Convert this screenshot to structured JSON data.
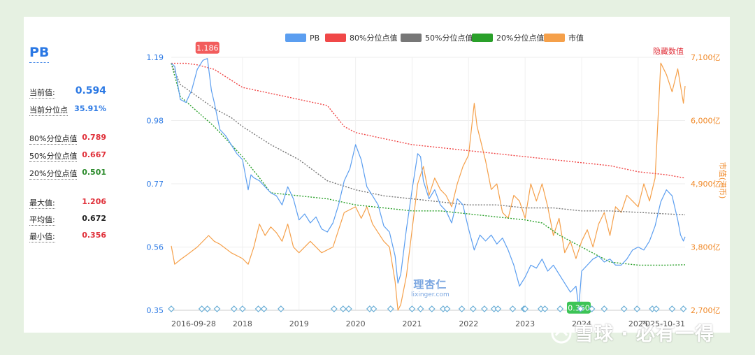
{
  "sidebar": {
    "title": "PB",
    "current_label": "当前值:",
    "current_value": "0.594",
    "percentile_label": "当前分位点",
    "percentile_value": "35.91%",
    "p80_label": "80%分位点值",
    "p80_value": "0.789",
    "p50_label": "50%分位点值",
    "p50_value": "0.667",
    "p20_label": "20%分位点值",
    "p20_value": "0.501",
    "max_label": "最大值:",
    "max_value": "1.206",
    "avg_label": "平均值:",
    "avg_value": "0.672",
    "min_label": "最小值:",
    "min_value": "0.356"
  },
  "right_axis_note": "隐藏数值",
  "watermark": {
    "lixinger_cn": "理杏仁",
    "lixinger_url": "lixinger.com",
    "snowball": "雪球 · 必有一得"
  },
  "colors": {
    "pb": "#5b9ef0",
    "p80": "#f04848",
    "p50": "#777777",
    "p20": "#2aa02a",
    "mv": "#f5a04a",
    "diamond": "#6aaed6"
  },
  "chart_data": {
    "type": "line",
    "title": "",
    "legend": [
      "PB",
      "80%分位点值",
      "50%分位点值",
      "20%分位点值",
      "市值"
    ],
    "legend_position": "top",
    "x_ticks": [
      "2016-09-28",
      "2018",
      "2019",
      "2020",
      "2021",
      "2022",
      "2023",
      "2024",
      "2025",
      "2025-10-31"
    ],
    "y_left_ticks": [
      "1.19",
      "0.98",
      "0.77",
      "0.56",
      "0.35"
    ],
    "y_left_range": [
      0.35,
      1.19
    ],
    "y_right_ticks": [
      "7,100亿",
      "6,000亿",
      "4,900亿",
      "3,800亿",
      "2,700亿"
    ],
    "y_right_range": [
      2700,
      7100
    ],
    "y_right_label": "市值(港币)",
    "annotations": [
      {
        "label": "1.186",
        "x": 2017.38,
        "y": 1.186,
        "color": "#f25c5c"
      },
      {
        "label": "0.360",
        "x": 2023.95,
        "y": 0.36,
        "color": "#3cc456"
      }
    ],
    "series": [
      {
        "name": "PB",
        "axis": "left",
        "x": [
          2016.74,
          2016.8,
          2016.9,
          2017.0,
          2017.1,
          2017.2,
          2017.3,
          2017.38,
          2017.45,
          2017.5,
          2017.6,
          2017.7,
          2017.8,
          2017.9,
          2018.0,
          2018.1,
          2018.15,
          2018.2,
          2018.3,
          2018.4,
          2018.5,
          2018.6,
          2018.7,
          2018.8,
          2018.9,
          2019.0,
          2019.1,
          2019.2,
          2019.3,
          2019.4,
          2019.5,
          2019.6,
          2019.7,
          2019.8,
          2019.9,
          2020.0,
          2020.1,
          2020.2,
          2020.3,
          2020.4,
          2020.5,
          2020.6,
          2020.7,
          2020.75,
          2020.8,
          2020.9,
          2021.0,
          2021.1,
          2021.15,
          2021.2,
          2021.3,
          2021.4,
          2021.5,
          2021.6,
          2021.7,
          2021.8,
          2021.9,
          2022.0,
          2022.1,
          2022.2,
          2022.3,
          2022.4,
          2022.5,
          2022.6,
          2022.7,
          2022.8,
          2022.9,
          2023.0,
          2023.1,
          2023.2,
          2023.3,
          2023.4,
          2023.5,
          2023.6,
          2023.7,
          2023.8,
          2023.9,
          2023.95,
          2024.0,
          2024.1,
          2024.2,
          2024.3,
          2024.4,
          2024.5,
          2024.6,
          2024.7,
          2024.8,
          2024.9,
          2025.0,
          2025.1,
          2025.2,
          2025.3,
          2025.4,
          2025.5,
          2025.6,
          2025.7,
          2025.75,
          2025.8,
          2025.83
        ],
        "values": [
          1.17,
          1.16,
          1.05,
          1.04,
          1.08,
          1.15,
          1.18,
          1.186,
          1.08,
          1.04,
          0.95,
          0.93,
          0.9,
          0.87,
          0.85,
          0.75,
          0.8,
          0.79,
          0.78,
          0.76,
          0.74,
          0.73,
          0.7,
          0.76,
          0.72,
          0.65,
          0.67,
          0.64,
          0.66,
          0.62,
          0.61,
          0.64,
          0.7,
          0.78,
          0.82,
          0.9,
          0.85,
          0.76,
          0.73,
          0.7,
          0.63,
          0.61,
          0.53,
          0.44,
          0.47,
          0.62,
          0.75,
          0.87,
          0.86,
          0.78,
          0.72,
          0.75,
          0.7,
          0.68,
          0.64,
          0.72,
          0.7,
          0.62,
          0.55,
          0.6,
          0.58,
          0.6,
          0.57,
          0.59,
          0.55,
          0.5,
          0.43,
          0.46,
          0.5,
          0.49,
          0.52,
          0.48,
          0.5,
          0.47,
          0.44,
          0.41,
          0.43,
          0.36,
          0.48,
          0.5,
          0.52,
          0.53,
          0.51,
          0.52,
          0.5,
          0.5,
          0.52,
          0.55,
          0.56,
          0.55,
          0.58,
          0.63,
          0.71,
          0.75,
          0.73,
          0.65,
          0.6,
          0.58,
          0.594
        ]
      },
      {
        "name": "80%分位点值",
        "axis": "left",
        "x": [
          2016.74,
          2017.0,
          2017.2,
          2017.5,
          2018.0,
          2018.5,
          2019.0,
          2019.5,
          2019.8,
          2020.0,
          2020.5,
          2021.0,
          2021.5,
          2022.0,
          2022.5,
          2023.0,
          2023.5,
          2024.0,
          2024.5,
          2025.0,
          2025.5,
          2025.83
        ],
        "values": [
          1.17,
          1.17,
          1.165,
          1.15,
          1.09,
          1.07,
          1.05,
          1.03,
          0.96,
          0.94,
          0.92,
          0.9,
          0.89,
          0.88,
          0.87,
          0.86,
          0.85,
          0.84,
          0.83,
          0.81,
          0.8,
          0.789
        ]
      },
      {
        "name": "50%分位点值",
        "axis": "left",
        "x": [
          2016.74,
          2016.9,
          2017.2,
          2017.5,
          2017.8,
          2018.0,
          2018.5,
          2019.0,
          2019.5,
          2020.0,
          2020.5,
          2021.0,
          2021.5,
          2022.0,
          2022.5,
          2023.0,
          2023.5,
          2024.0,
          2024.5,
          2025.0,
          2025.5,
          2025.83
        ],
        "values": [
          1.17,
          1.1,
          1.06,
          1.02,
          0.99,
          0.96,
          0.9,
          0.85,
          0.78,
          0.75,
          0.73,
          0.72,
          0.71,
          0.7,
          0.7,
          0.69,
          0.69,
          0.68,
          0.68,
          0.675,
          0.67,
          0.667
        ]
      },
      {
        "name": "20%分位点值",
        "axis": "left",
        "x": [
          2016.74,
          2016.9,
          2017.2,
          2017.5,
          2017.8,
          2018.0,
          2018.3,
          2018.5,
          2019.0,
          2019.5,
          2020.0,
          2020.5,
          2021.0,
          2021.5,
          2022.0,
          2022.5,
          2023.0,
          2023.3,
          2023.6,
          2023.9,
          2024.2,
          2024.5,
          2025.0,
          2025.5,
          2025.83
        ],
        "values": [
          1.17,
          1.06,
          1.01,
          0.96,
          0.9,
          0.86,
          0.79,
          0.74,
          0.73,
          0.72,
          0.7,
          0.69,
          0.68,
          0.68,
          0.67,
          0.66,
          0.65,
          0.64,
          0.6,
          0.57,
          0.54,
          0.51,
          0.5,
          0.5,
          0.501
        ]
      },
      {
        "name": "市值",
        "axis": "right",
        "x": [
          2016.74,
          2016.8,
          2016.9,
          2017.0,
          2017.2,
          2017.4,
          2017.5,
          2017.6,
          2017.8,
          2018.0,
          2018.1,
          2018.2,
          2018.3,
          2018.4,
          2018.5,
          2018.6,
          2018.7,
          2018.8,
          2018.9,
          2019.0,
          2019.2,
          2019.4,
          2019.6,
          2019.8,
          2020.0,
          2020.1,
          2020.2,
          2020.3,
          2020.5,
          2020.6,
          2020.7,
          2020.75,
          2020.8,
          2020.9,
          2021.0,
          2021.1,
          2021.2,
          2021.3,
          2021.4,
          2021.5,
          2021.6,
          2021.7,
          2021.8,
          2021.9,
          2022.0,
          2022.1,
          2022.15,
          2022.2,
          2022.3,
          2022.4,
          2022.5,
          2022.6,
          2022.7,
          2022.8,
          2022.9,
          2023.0,
          2023.1,
          2023.2,
          2023.3,
          2023.4,
          2023.5,
          2023.6,
          2023.7,
          2023.8,
          2023.9,
          2024.0,
          2024.1,
          2024.2,
          2024.3,
          2024.4,
          2024.5,
          2024.6,
          2024.7,
          2024.8,
          2024.9,
          2025.0,
          2025.1,
          2025.2,
          2025.25,
          2025.3,
          2025.4,
          2025.5,
          2025.6,
          2025.7,
          2025.8,
          2025.83
        ],
        "values": [
          3820,
          3500,
          3580,
          3650,
          3800,
          4000,
          3900,
          3850,
          3700,
          3600,
          3500,
          3800,
          4200,
          4000,
          4150,
          4050,
          3900,
          4200,
          3800,
          3700,
          3900,
          3700,
          3800,
          4400,
          4500,
          4300,
          4500,
          4200,
          3900,
          3800,
          3200,
          2700,
          2800,
          3300,
          4100,
          4900,
          5200,
          4700,
          5000,
          4800,
          4700,
          4500,
          4900,
          5200,
          5400,
          6300,
          5900,
          5700,
          5300,
          4800,
          4900,
          4400,
          4300,
          4700,
          4600,
          4300,
          4900,
          4600,
          4900,
          4500,
          4000,
          4300,
          3700,
          3900,
          3600,
          3900,
          4100,
          3800,
          4200,
          4400,
          4000,
          4500,
          4400,
          4700,
          4600,
          4500,
          4900,
          4600,
          4800,
          5000,
          7000,
          6800,
          6500,
          6900,
          6300,
          6600
        ]
      }
    ]
  }
}
